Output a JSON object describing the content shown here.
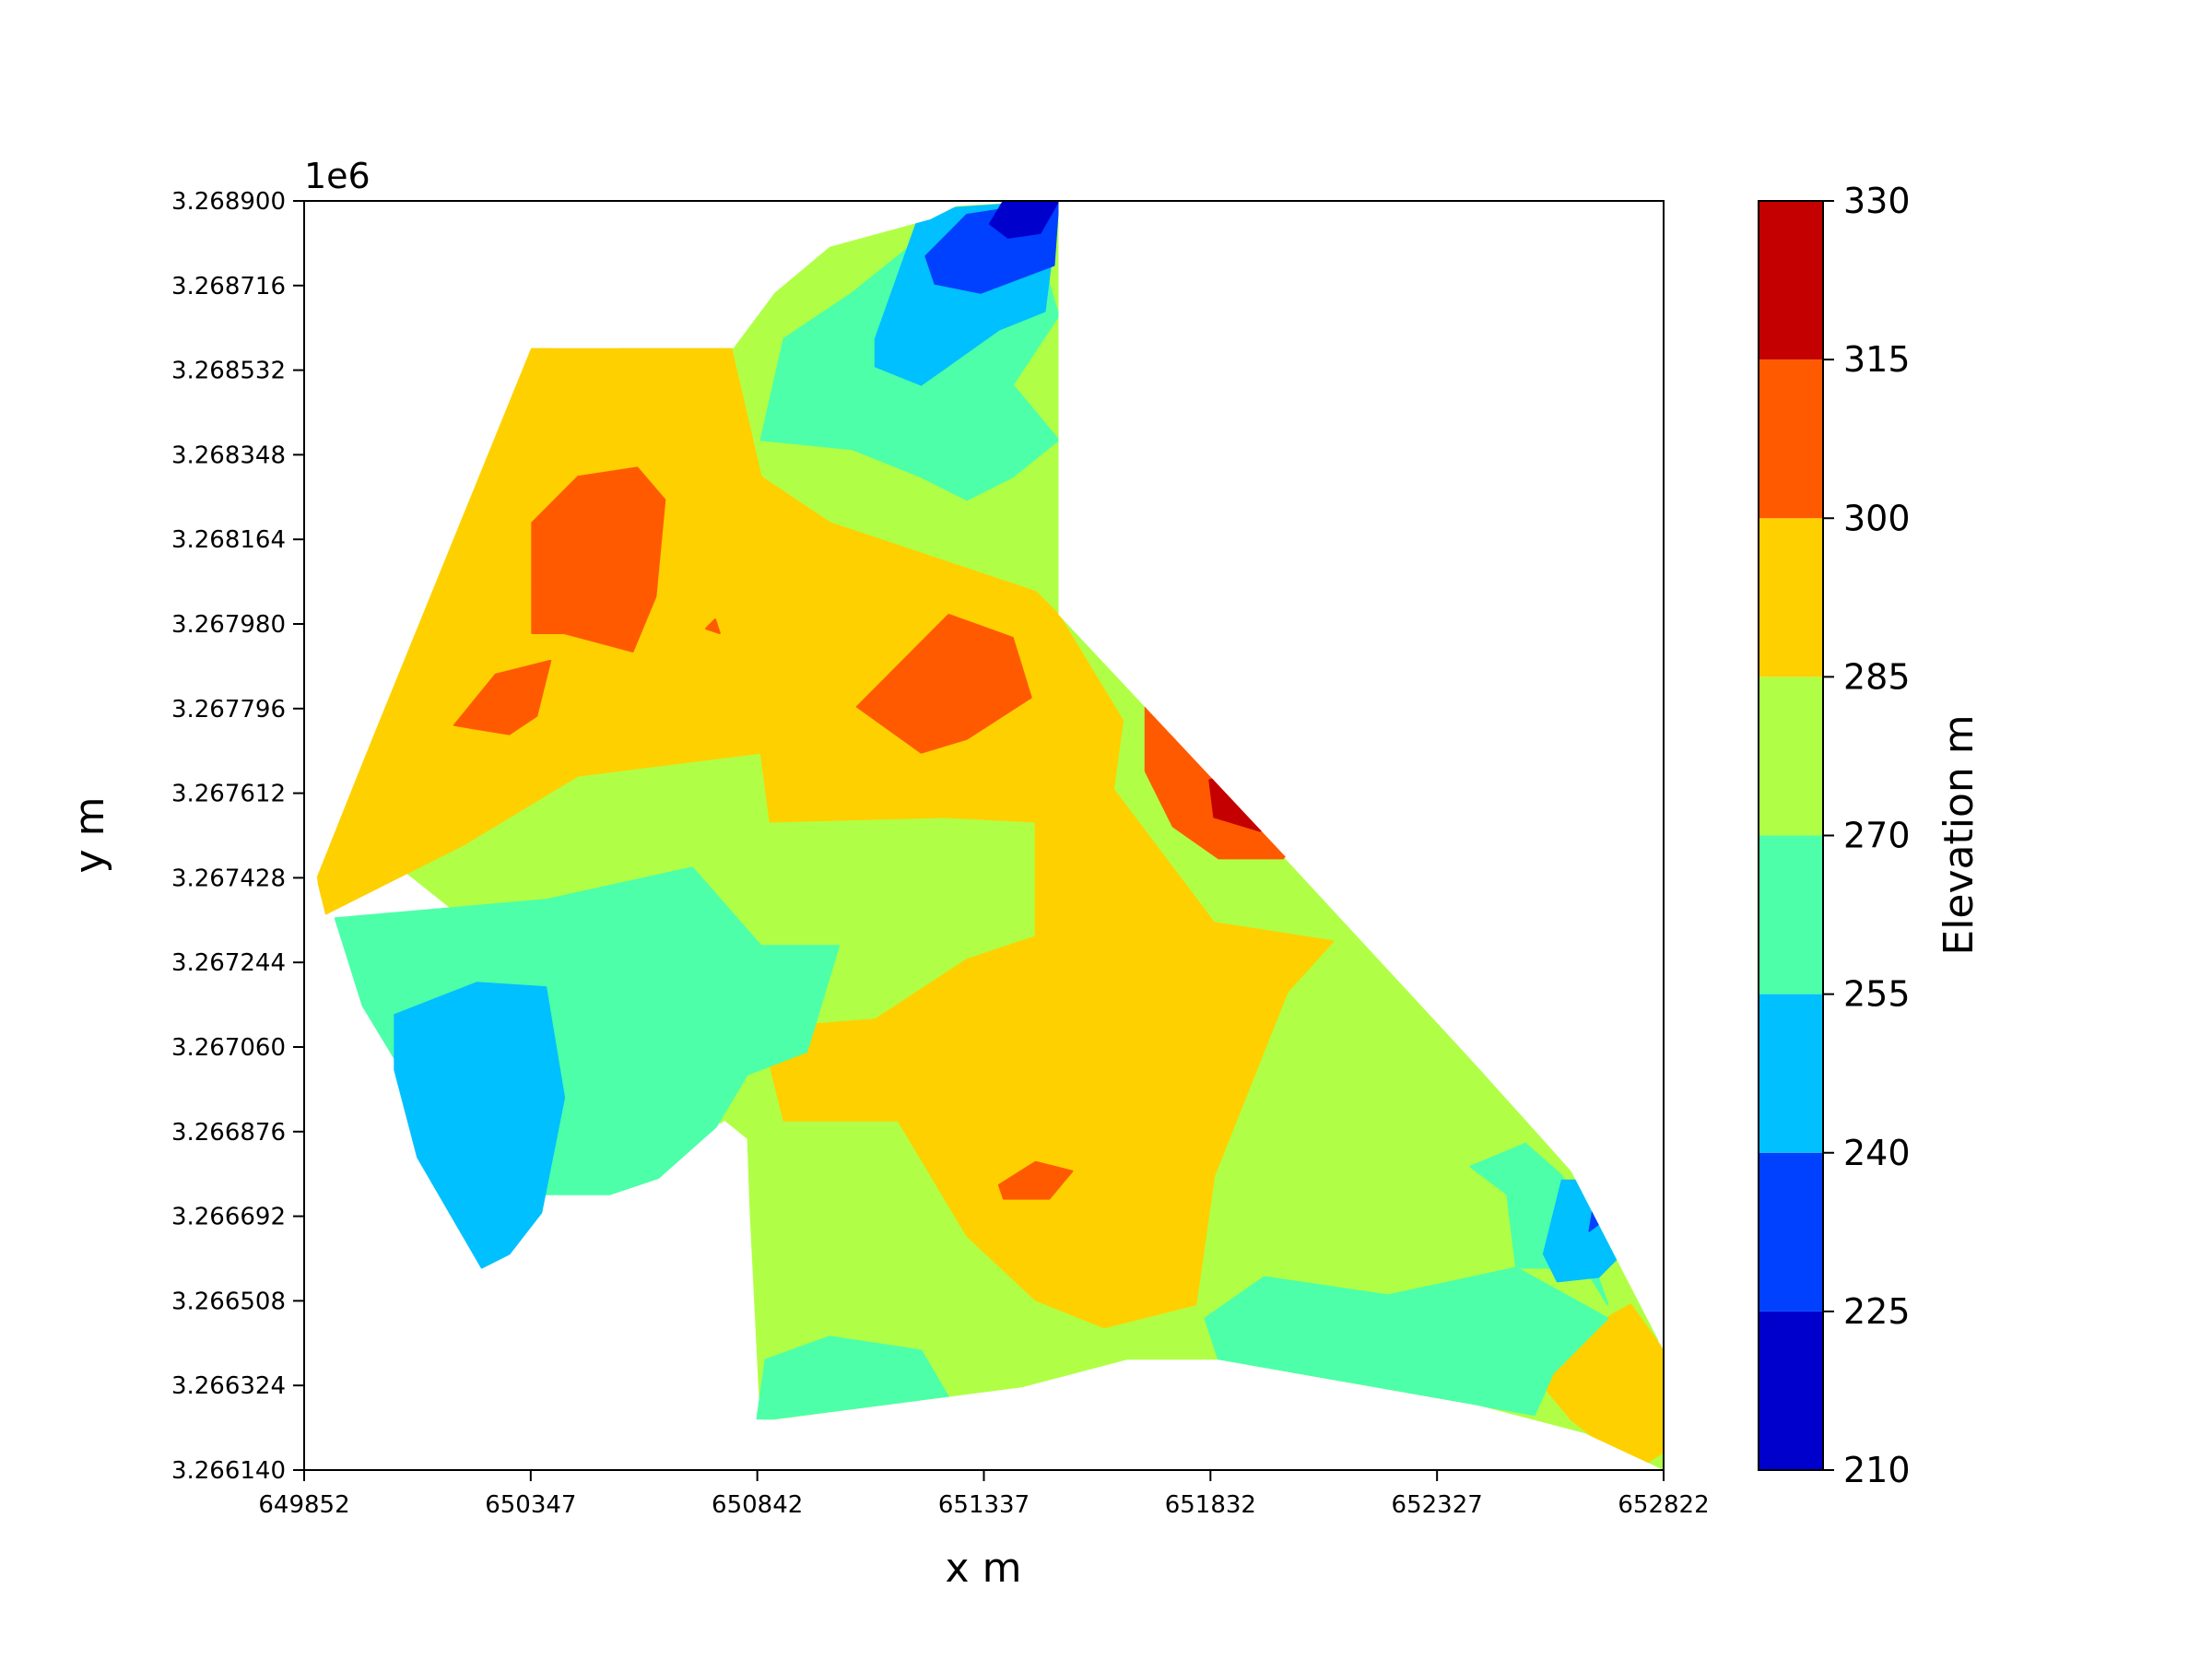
{
  "chart_data": {
    "type": "heatmap",
    "subtype": "filled-contour",
    "xlabel": "x m",
    "ylabel": "y m",
    "y_offset_text": "1e6",
    "x_ticks": [
      "649852",
      "650347",
      "650842",
      "651337",
      "651832",
      "652327",
      "652822"
    ],
    "y_ticks": [
      "3.266140",
      "3.266324",
      "3.266508",
      "3.266692",
      "3.266876",
      "3.267060",
      "3.267244",
      "3.267428",
      "3.267612",
      "3.267796",
      "3.267980",
      "3.268164",
      "3.268348",
      "3.268532",
      "3.268716",
      "3.268900"
    ],
    "xlim": [
      649852,
      652822
    ],
    "ylim": [
      3266140,
      3268900
    ],
    "colorbar": {
      "label": "Elevation m",
      "levels": [
        210,
        225,
        240,
        255,
        270,
        285,
        300,
        315,
        330
      ],
      "tick_labels": [
        "210",
        "225",
        "240",
        "255",
        "270",
        "285",
        "300",
        "315",
        "330"
      ],
      "colors": [
        "#0000cd",
        "#0040ff",
        "#00c0ff",
        "#4dffa8",
        "#b0ff46",
        "#ffd000",
        "#ff5a00",
        "#c40000"
      ]
    },
    "colormap": "jet",
    "regions": [
      {
        "level_band": "270-285",
        "polygon": [
          [
            650120,
            3267500
          ],
          [
            650650,
            3268850
          ],
          [
            651500,
            3268900
          ],
          [
            651500,
            3268000
          ],
          [
            652800,
            3266600
          ],
          [
            652822,
            3266140
          ],
          [
            650850,
            3266250
          ],
          [
            650820,
            3266850
          ],
          [
            650000,
            3267500
          ]
        ]
      },
      {
        "level_band": "285-300",
        "polygon": [
          [
            649880,
            3267430
          ],
          [
            650350,
            3268580
          ],
          [
            650780,
            3268600
          ],
          [
            650850,
            3268300
          ],
          [
            651000,
            3268200
          ],
          [
            651450,
            3268050
          ],
          [
            651500,
            3268000
          ],
          [
            651640,
            3267770
          ],
          [
            651620,
            3267620
          ],
          [
            651840,
            3267330
          ],
          [
            652100,
            3267290
          ],
          [
            652000,
            3267180
          ],
          [
            651840,
            3266780
          ],
          [
            651800,
            3266500
          ],
          [
            651600,
            3266450
          ],
          [
            651450,
            3266510
          ],
          [
            651300,
            3266650
          ],
          [
            651150,
            3266900
          ],
          [
            650900,
            3266900
          ],
          [
            650850,
            3267100
          ],
          [
            651100,
            3267120
          ],
          [
            651300,
            3267250
          ],
          [
            651450,
            3267300
          ],
          [
            651450,
            3267550
          ],
          [
            651250,
            3267560
          ],
          [
            650870,
            3267550
          ],
          [
            650850,
            3267700
          ],
          [
            650450,
            3267650
          ],
          [
            650200,
            3267500
          ],
          [
            649900,
            3267350
          ]
        ]
      },
      {
        "level_band": "285-300",
        "polygon": [
          [
            652520,
            3266370
          ],
          [
            652750,
            3266500
          ],
          [
            652822,
            3266400
          ],
          [
            652822,
            3266180
          ],
          [
            652760,
            3266140
          ],
          [
            652620,
            3266250
          ],
          [
            652520,
            3266370
          ]
        ]
      },
      {
        "level_band": "255-270",
        "polygon": [
          [
            649920,
            3267340
          ],
          [
            650380,
            3267380
          ],
          [
            650700,
            3267450
          ],
          [
            650850,
            3267280
          ],
          [
            651020,
            3267280
          ],
          [
            650950,
            3267050
          ],
          [
            650820,
            3267000
          ],
          [
            650700,
            3266800
          ],
          [
            650520,
            3266740
          ],
          [
            650350,
            3266740
          ],
          [
            650300,
            3266630
          ],
          [
            650150,
            3266870
          ],
          [
            649980,
            3267150
          ],
          [
            649920,
            3267340
          ]
        ]
      },
      {
        "level_band": "255-270",
        "polygon": [
          [
            650860,
            3266380
          ],
          [
            651000,
            3266430
          ],
          [
            651200,
            3266400
          ],
          [
            651300,
            3266230
          ],
          [
            650900,
            3266200
          ],
          [
            650840,
            3266240
          ]
        ]
      },
      {
        "level_band": "255-270",
        "polygon": [
          [
            651950,
            3266560
          ],
          [
            652220,
            3266520
          ],
          [
            652500,
            3266580
          ],
          [
            652700,
            3266470
          ],
          [
            652580,
            3266350
          ],
          [
            652540,
            3266260
          ],
          [
            651850,
            3266380
          ],
          [
            651820,
            3266470
          ]
        ]
      },
      {
        "level_band": "255-270",
        "polygon": [
          [
            652400,
            3266800
          ],
          [
            652480,
            3266740
          ],
          [
            652500,
            3266580
          ],
          [
            652650,
            3266580
          ],
          [
            652700,
            3266500
          ],
          [
            652600,
            3266780
          ],
          [
            652520,
            3266850
          ]
        ]
      },
      {
        "level_band": "255-270",
        "polygon": [
          [
            650850,
            3268380
          ],
          [
            650900,
            3268600
          ],
          [
            651050,
            3268700
          ],
          [
            651200,
            3268820
          ],
          [
            651450,
            3268820
          ],
          [
            651500,
            3268650
          ],
          [
            651400,
            3268500
          ],
          [
            651500,
            3268380
          ],
          [
            651400,
            3268300
          ],
          [
            651300,
            3268250
          ],
          [
            651200,
            3268300
          ],
          [
            651050,
            3268360
          ]
        ]
      },
      {
        "level_band": "240-255",
        "polygon": [
          [
            650050,
            3267130
          ],
          [
            650230,
            3267200
          ],
          [
            650380,
            3267190
          ],
          [
            650420,
            3266950
          ],
          [
            650370,
            3266700
          ],
          [
            650300,
            3266610
          ],
          [
            650240,
            3266580
          ],
          [
            650100,
            3266820
          ],
          [
            650050,
            3267010
          ]
        ]
      },
      {
        "level_band": "240-255",
        "polygon": [
          [
            651100,
            3268600
          ],
          [
            651200,
            3268880
          ],
          [
            651500,
            3268900
          ],
          [
            651470,
            3268660
          ],
          [
            651370,
            3268620
          ],
          [
            651200,
            3268500
          ],
          [
            651100,
            3268540
          ]
        ]
      },
      {
        "level_band": "240-255",
        "polygon": [
          [
            652560,
            3266610
          ],
          [
            652600,
            3266770
          ],
          [
            652650,
            3266770
          ],
          [
            652740,
            3266620
          ],
          [
            652680,
            3266560
          ],
          [
            652590,
            3266550
          ]
        ]
      },
      {
        "level_band": "225-240",
        "polygon": [
          [
            651210,
            3268780
          ],
          [
            651300,
            3268870
          ],
          [
            651500,
            3268900
          ],
          [
            651490,
            3268760
          ],
          [
            651330,
            3268700
          ],
          [
            651230,
            3268720
          ]
        ]
      },
      {
        "level_band": "225-240",
        "polygon": [
          [
            652670,
            3266720
          ],
          [
            652700,
            3266690
          ],
          [
            652660,
            3266660
          ]
        ]
      },
      {
        "level_band": "210-225",
        "polygon": [
          [
            651350,
            3268850
          ],
          [
            651380,
            3268900
          ],
          [
            651500,
            3268900
          ],
          [
            651460,
            3268830
          ],
          [
            651390,
            3268820
          ]
        ]
      },
      {
        "level_band": "300-315",
        "polygon": [
          [
            650350,
            3268200
          ],
          [
            650450,
            3268300
          ],
          [
            650580,
            3268320
          ],
          [
            650640,
            3268250
          ],
          [
            650620,
            3268040
          ],
          [
            650570,
            3267920
          ],
          [
            650420,
            3267960
          ],
          [
            650350,
            3267960
          ]
        ]
      },
      {
        "level_band": "300-315",
        "polygon": [
          [
            650180,
            3267760
          ],
          [
            650270,
            3267870
          ],
          [
            650390,
            3267900
          ],
          [
            650360,
            3267780
          ],
          [
            650300,
            3267740
          ]
        ]
      },
      {
        "level_band": "300-315",
        "polygon": [
          [
            651060,
            3267800
          ],
          [
            651260,
            3268000
          ],
          [
            651400,
            3267950
          ],
          [
            651440,
            3267820
          ],
          [
            651300,
            3267730
          ],
          [
            651200,
            3267700
          ]
        ]
      },
      {
        "level_band": "300-315",
        "polygon": [
          [
            650730,
            3267970
          ],
          [
            650750,
            3267990
          ],
          [
            650760,
            3267960
          ]
        ]
      },
      {
        "level_band": "300-315",
        "polygon": [
          [
            651690,
            3267840
          ],
          [
            651760,
            3267960
          ],
          [
            651850,
            3267870
          ],
          [
            651990,
            3267700
          ],
          [
            652090,
            3267570
          ],
          [
            651990,
            3267470
          ],
          [
            651850,
            3267470
          ],
          [
            651750,
            3267540
          ],
          [
            651690,
            3267660
          ]
        ]
      },
      {
        "level_band": "300-315",
        "polygon": [
          [
            651370,
            3266760
          ],
          [
            651450,
            3266810
          ],
          [
            651530,
            3266790
          ],
          [
            651480,
            3266730
          ],
          [
            651380,
            3266730
          ]
        ]
      },
      {
        "level_band": "315-330",
        "polygon": [
          [
            651830,
            3267640
          ],
          [
            651890,
            3267660
          ],
          [
            652000,
            3267550
          ],
          [
            651940,
            3267530
          ],
          [
            651840,
            3267560
          ]
        ]
      }
    ],
    "domain_boundary": [
      [
        649880,
        3267430
      ],
      [
        650340,
        3268580
      ],
      [
        650790,
        3268580
      ],
      [
        650880,
        3268700
      ],
      [
        651000,
        3268800
      ],
      [
        651220,
        3268860
      ],
      [
        651300,
        3268900
      ],
      [
        651500,
        3268900
      ],
      [
        651500,
        3268000
      ],
      [
        652160,
        3267300
      ],
      [
        652620,
        3266790
      ],
      [
        652822,
        3266400
      ],
      [
        652822,
        3266140
      ],
      [
        652650,
        3266220
      ],
      [
        652420,
        3266280
      ],
      [
        651850,
        3266380
      ],
      [
        651650,
        3266380
      ],
      [
        651420,
        3266320
      ],
      [
        650880,
        3266250
      ],
      [
        650840,
        3266250
      ],
      [
        650820,
        3266860
      ],
      [
        650770,
        3266900
      ],
      [
        650600,
        3266750
      ],
      [
        650400,
        3266670
      ],
      [
        650250,
        3266550
      ],
      [
        650080,
        3266850
      ],
      [
        649900,
        3267270
      ]
    ]
  }
}
